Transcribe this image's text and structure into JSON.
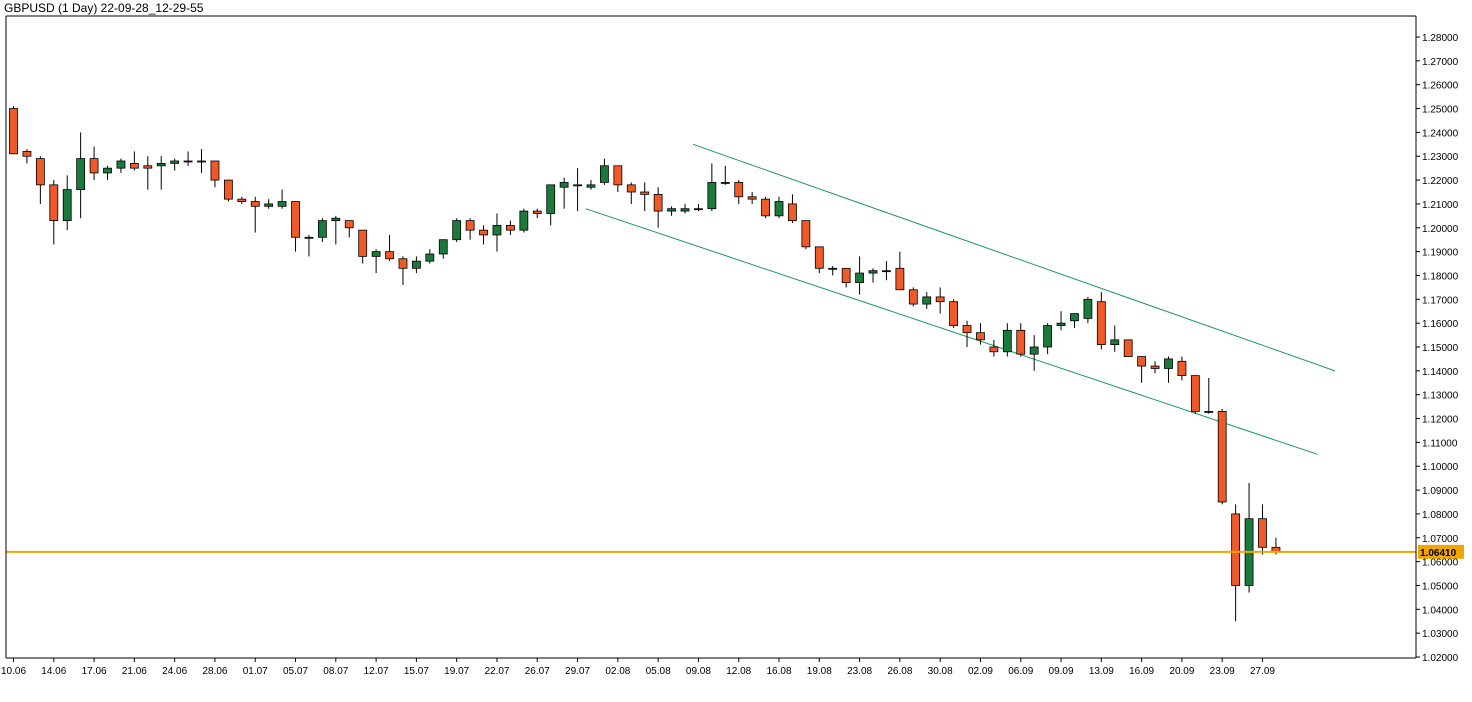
{
  "chart_data": {
    "type": "candlestick",
    "title": "GBPUSD (1 Day) 22-09-28_12-29-55",
    "ylim": [
      1.02,
      1.2894
    ],
    "y_ticks": [
      "1.28000",
      "1.27000",
      "1.26000",
      "1.25000",
      "1.24000",
      "1.23000",
      "1.22000",
      "1.21000",
      "1.20000",
      "1.19000",
      "1.18000",
      "1.17000",
      "1.16000",
      "1.15000",
      "1.14000",
      "1.13000",
      "1.12000",
      "1.11000",
      "1.10000",
      "1.09000",
      "1.08000",
      "1.07000",
      "1.06000",
      "1.05000",
      "1.04000",
      "1.03000",
      "1.02000"
    ],
    "x_labels": [
      "10.06",
      "14.06",
      "17.06",
      "21.06",
      "24.06",
      "28.06",
      "01.07",
      "05.07",
      "08.07",
      "12.07",
      "15.07",
      "19.07",
      "22.07",
      "26.07",
      "29.07",
      "02.08",
      "05.08",
      "09.08",
      "12.08",
      "16.08",
      "19.08",
      "23.08",
      "26.08",
      "30.08",
      "02.09",
      "06.09",
      "09.09",
      "13.09",
      "16.09",
      "20.09",
      "23.09",
      "27.09"
    ],
    "current_price": {
      "value": 1.0641,
      "label": "1.06410",
      "color": "#f0a500"
    },
    "colors": {
      "bull": "#1a7a3c",
      "bear": "#f05a28",
      "channel": "#1a9a5a",
      "grid_text": "#000000"
    },
    "candles": [
      {
        "o": 1.25,
        "h": 1.251,
        "l": 1.231,
        "c": 1.231
      },
      {
        "o": 1.232,
        "h": 1.233,
        "l": 1.227,
        "c": 1.23
      },
      {
        "o": 1.229,
        "h": 1.23,
        "l": 1.21,
        "c": 1.218
      },
      {
        "o": 1.218,
        "h": 1.22,
        "l": 1.193,
        "c": 1.203
      },
      {
        "o": 1.203,
        "h": 1.222,
        "l": 1.199,
        "c": 1.216
      },
      {
        "o": 1.216,
        "h": 1.24,
        "l": 1.204,
        "c": 1.229
      },
      {
        "o": 1.229,
        "h": 1.234,
        "l": 1.22,
        "c": 1.223
      },
      {
        "o": 1.223,
        "h": 1.226,
        "l": 1.22,
        "c": 1.225
      },
      {
        "o": 1.225,
        "h": 1.229,
        "l": 1.223,
        "c": 1.228
      },
      {
        "o": 1.227,
        "h": 1.232,
        "l": 1.224,
        "c": 1.225
      },
      {
        "o": 1.226,
        "h": 1.23,
        "l": 1.216,
        "c": 1.225
      },
      {
        "o": 1.226,
        "h": 1.23,
        "l": 1.216,
        "c": 1.227
      },
      {
        "o": 1.227,
        "h": 1.229,
        "l": 1.224,
        "c": 1.228
      },
      {
        "o": 1.228,
        "h": 1.232,
        "l": 1.226,
        "c": 1.228
      },
      {
        "o": 1.228,
        "h": 1.233,
        "l": 1.223,
        "c": 1.228
      },
      {
        "o": 1.228,
        "h": 1.228,
        "l": 1.217,
        "c": 1.22
      },
      {
        "o": 1.22,
        "h": 1.22,
        "l": 1.211,
        "c": 1.212
      },
      {
        "o": 1.212,
        "h": 1.213,
        "l": 1.21,
        "c": 1.211
      },
      {
        "o": 1.211,
        "h": 1.213,
        "l": 1.198,
        "c": 1.209
      },
      {
        "o": 1.209,
        "h": 1.212,
        "l": 1.208,
        "c": 1.21
      },
      {
        "o": 1.209,
        "h": 1.216,
        "l": 1.208,
        "c": 1.211
      },
      {
        "o": 1.211,
        "h": 1.211,
        "l": 1.19,
        "c": 1.196
      },
      {
        "o": 1.196,
        "h": 1.197,
        "l": 1.188,
        "c": 1.196
      },
      {
        "o": 1.196,
        "h": 1.204,
        "l": 1.194,
        "c": 1.203
      },
      {
        "o": 1.203,
        "h": 1.205,
        "l": 1.193,
        "c": 1.204
      },
      {
        "o": 1.203,
        "h": 1.203,
        "l": 1.196,
        "c": 1.2
      },
      {
        "o": 1.199,
        "h": 1.199,
        "l": 1.185,
        "c": 1.188
      },
      {
        "o": 1.188,
        "h": 1.191,
        "l": 1.181,
        "c": 1.19
      },
      {
        "o": 1.19,
        "h": 1.197,
        "l": 1.186,
        "c": 1.187
      },
      {
        "o": 1.187,
        "h": 1.188,
        "l": 1.176,
        "c": 1.183
      },
      {
        "o": 1.183,
        "h": 1.188,
        "l": 1.181,
        "c": 1.186
      },
      {
        "o": 1.186,
        "h": 1.191,
        "l": 1.185,
        "c": 1.189
      },
      {
        "o": 1.189,
        "h": 1.195,
        "l": 1.187,
        "c": 1.195
      },
      {
        "o": 1.195,
        "h": 1.204,
        "l": 1.194,
        "c": 1.203
      },
      {
        "o": 1.203,
        "h": 1.204,
        "l": 1.195,
        "c": 1.199
      },
      {
        "o": 1.199,
        "h": 1.201,
        "l": 1.193,
        "c": 1.197
      },
      {
        "o": 1.197,
        "h": 1.206,
        "l": 1.19,
        "c": 1.201
      },
      {
        "o": 1.201,
        "h": 1.203,
        "l": 1.197,
        "c": 1.199
      },
      {
        "o": 1.199,
        "h": 1.208,
        "l": 1.198,
        "c": 1.207
      },
      {
        "o": 1.207,
        "h": 1.208,
        "l": 1.204,
        "c": 1.206
      },
      {
        "o": 1.206,
        "h": 1.218,
        "l": 1.201,
        "c": 1.218
      },
      {
        "o": 1.217,
        "h": 1.221,
        "l": 1.208,
        "c": 1.219
      },
      {
        "o": 1.218,
        "h": 1.225,
        "l": 1.207,
        "c": 1.218
      },
      {
        "o": 1.217,
        "h": 1.22,
        "l": 1.216,
        "c": 1.218
      },
      {
        "o": 1.219,
        "h": 1.229,
        "l": 1.218,
        "c": 1.226
      },
      {
        "o": 1.226,
        "h": 1.226,
        "l": 1.215,
        "c": 1.218
      },
      {
        "o": 1.218,
        "h": 1.219,
        "l": 1.21,
        "c": 1.215
      },
      {
        "o": 1.215,
        "h": 1.219,
        "l": 1.207,
        "c": 1.214
      },
      {
        "o": 1.214,
        "h": 1.217,
        "l": 1.2,
        "c": 1.207
      },
      {
        "o": 1.207,
        "h": 1.209,
        "l": 1.205,
        "c": 1.208
      },
      {
        "o": 1.207,
        "h": 1.21,
        "l": 1.206,
        "c": 1.208
      },
      {
        "o": 1.208,
        "h": 1.21,
        "l": 1.207,
        "c": 1.208
      },
      {
        "o": 1.208,
        "h": 1.227,
        "l": 1.207,
        "c": 1.219
      },
      {
        "o": 1.219,
        "h": 1.226,
        "l": 1.218,
        "c": 1.219
      },
      {
        "o": 1.219,
        "h": 1.22,
        "l": 1.21,
        "c": 1.213
      },
      {
        "o": 1.213,
        "h": 1.215,
        "l": 1.21,
        "c": 1.212
      },
      {
        "o": 1.212,
        "h": 1.213,
        "l": 1.204,
        "c": 1.205
      },
      {
        "o": 1.205,
        "h": 1.213,
        "l": 1.204,
        "c": 1.211
      },
      {
        "o": 1.21,
        "h": 1.214,
        "l": 1.202,
        "c": 1.203
      },
      {
        "o": 1.203,
        "h": 1.203,
        "l": 1.191,
        "c": 1.192
      },
      {
        "o": 1.192,
        "h": 1.192,
        "l": 1.181,
        "c": 1.183
      },
      {
        "o": 1.183,
        "h": 1.184,
        "l": 1.18,
        "c": 1.183
      },
      {
        "o": 1.183,
        "h": 1.183,
        "l": 1.175,
        "c": 1.177
      },
      {
        "o": 1.177,
        "h": 1.188,
        "l": 1.172,
        "c": 1.181
      },
      {
        "o": 1.181,
        "h": 1.183,
        "l": 1.177,
        "c": 1.182
      },
      {
        "o": 1.182,
        "h": 1.186,
        "l": 1.178,
        "c": 1.182
      },
      {
        "o": 1.183,
        "h": 1.19,
        "l": 1.175,
        "c": 1.174
      },
      {
        "o": 1.174,
        "h": 1.175,
        "l": 1.167,
        "c": 1.168
      },
      {
        "o": 1.168,
        "h": 1.173,
        "l": 1.166,
        "c": 1.171
      },
      {
        "o": 1.171,
        "h": 1.175,
        "l": 1.164,
        "c": 1.169
      },
      {
        "o": 1.169,
        "h": 1.17,
        "l": 1.158,
        "c": 1.159
      },
      {
        "o": 1.159,
        "h": 1.161,
        "l": 1.15,
        "c": 1.156
      },
      {
        "o": 1.156,
        "h": 1.16,
        "l": 1.151,
        "c": 1.153
      },
      {
        "o": 1.15,
        "h": 1.153,
        "l": 1.146,
        "c": 1.148
      },
      {
        "o": 1.148,
        "h": 1.16,
        "l": 1.146,
        "c": 1.157
      },
      {
        "o": 1.157,
        "h": 1.16,
        "l": 1.146,
        "c": 1.147
      },
      {
        "o": 1.147,
        "h": 1.155,
        "l": 1.14,
        "c": 1.15
      },
      {
        "o": 1.15,
        "h": 1.16,
        "l": 1.147,
        "c": 1.159
      },
      {
        "o": 1.159,
        "h": 1.165,
        "l": 1.157,
        "c": 1.16
      },
      {
        "o": 1.161,
        "h": 1.164,
        "l": 1.158,
        "c": 1.164
      },
      {
        "o": 1.162,
        "h": 1.171,
        "l": 1.16,
        "c": 1.17
      },
      {
        "o": 1.169,
        "h": 1.173,
        "l": 1.149,
        "c": 1.151
      },
      {
        "o": 1.151,
        "h": 1.159,
        "l": 1.148,
        "c": 1.153
      },
      {
        "o": 1.153,
        "h": 1.153,
        "l": 1.146,
        "c": 1.146
      },
      {
        "o": 1.146,
        "h": 1.146,
        "l": 1.135,
        "c": 1.142
      },
      {
        "o": 1.142,
        "h": 1.144,
        "l": 1.139,
        "c": 1.141
      },
      {
        "o": 1.141,
        "h": 1.146,
        "l": 1.135,
        "c": 1.145
      },
      {
        "o": 1.144,
        "h": 1.146,
        "l": 1.136,
        "c": 1.138
      },
      {
        "o": 1.138,
        "h": 1.138,
        "l": 1.122,
        "c": 1.123
      },
      {
        "o": 1.123,
        "h": 1.137,
        "l": 1.122,
        "c": 1.123
      },
      {
        "o": 1.123,
        "h": 1.124,
        "l": 1.084,
        "c": 1.085
      },
      {
        "o": 1.08,
        "h": 1.084,
        "l": 1.035,
        "c": 1.05
      },
      {
        "o": 1.05,
        "h": 1.093,
        "l": 1.047,
        "c": 1.078
      },
      {
        "o": 1.078,
        "h": 1.084,
        "l": 1.063,
        "c": 1.066
      },
      {
        "o": 1.066,
        "h": 1.07,
        "l": 1.063,
        "c": 1.0641
      }
    ]
  }
}
